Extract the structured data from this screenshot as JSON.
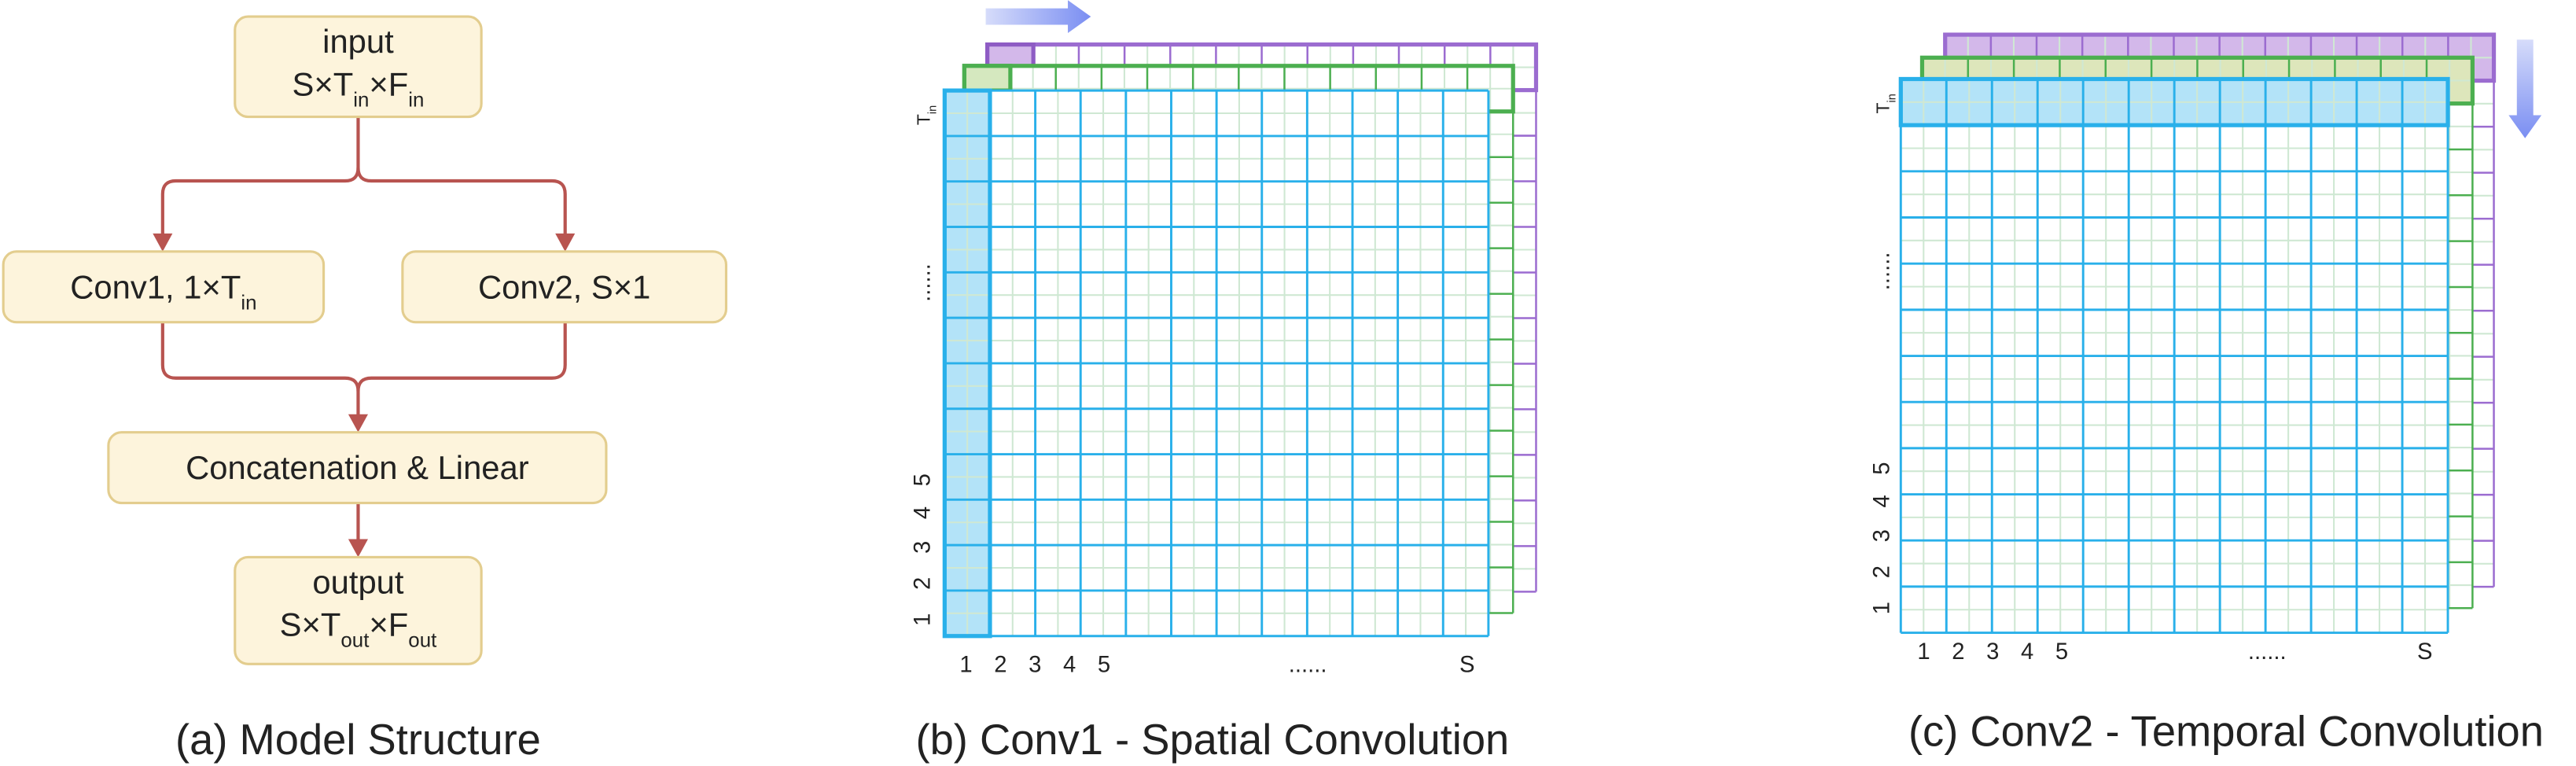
{
  "panel_a": {
    "nodes": [
      {
        "label": "input",
        "formula": [
          "S×T",
          "in",
          "×F",
          "in"
        ]
      },
      {
        "formula": [
          "Conv1, 1×T",
          "in"
        ]
      },
      {
        "formula": [
          "Conv2, S×1"
        ]
      },
      {
        "formula": [
          "Concatenation & Linear"
        ]
      },
      {
        "label": "output",
        "formula": [
          "S×T",
          "out",
          "×F",
          "out"
        ]
      }
    ],
    "caption": "(a) Model Structure"
  },
  "panel_b": {
    "x_labels": [
      "1",
      "2",
      "3",
      "4",
      "5",
      "......",
      "S"
    ],
    "y_labels": [
      "1",
      "2",
      "3",
      "4",
      "5",
      "......"
    ],
    "y_top": [
      "T",
      "in"
    ],
    "caption": "(b) Conv1 - Spatial Convolution"
  },
  "panel_c": {
    "x_labels": [
      "1",
      "2",
      "3",
      "4",
      "5",
      "......",
      "S"
    ],
    "y_labels": [
      "1",
      "2",
      "3",
      "4",
      "5",
      "......"
    ],
    "y_top": [
      "T",
      "in"
    ],
    "caption": "(c) Conv2 - Temporal Convolution"
  }
}
